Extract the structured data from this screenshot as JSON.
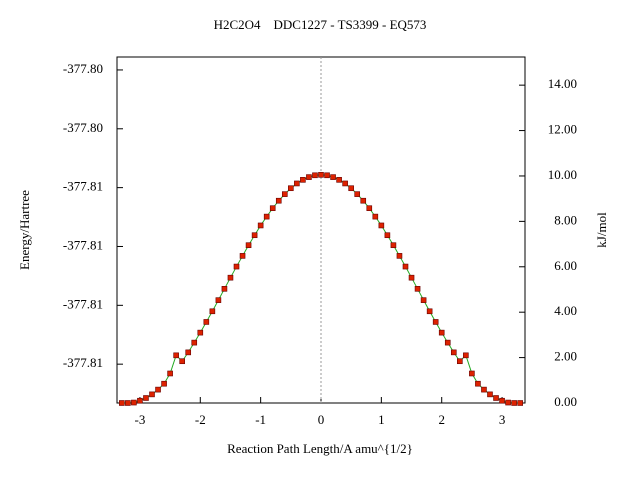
{
  "chart_data": {
    "type": "line",
    "title": "H2C2O4    DDC1227 - TS3399 - EQ573",
    "xlabel": "Reaction Path Length/A amu^{1/2}",
    "ylabel": "Energy/Hartree",
    "y2label": "kJ/mol",
    "x": [
      -3.3,
      -3.2,
      -3.1,
      -3.0,
      -2.9,
      -2.8,
      -2.7,
      -2.6,
      -2.5,
      -2.4,
      -2.3,
      -2.2,
      -2.1,
      -2.0,
      -1.9,
      -1.8,
      -1.7,
      -1.6,
      -1.5,
      -1.4,
      -1.3,
      -1.2,
      -1.1,
      -1.0,
      -0.9,
      -0.8,
      -0.7,
      -0.6,
      -0.5,
      -0.4,
      -0.3,
      -0.2,
      -0.1,
      0.0,
      0.1,
      0.2,
      0.3,
      0.4,
      0.5,
      0.6,
      0.7,
      0.8,
      0.9,
      1.0,
      1.1,
      1.2,
      1.3,
      1.4,
      1.5,
      1.6,
      1.7,
      1.8,
      1.9,
      2.0,
      2.1,
      2.2,
      2.3,
      2.4,
      2.5,
      2.6,
      2.7,
      2.8,
      2.9,
      3.0,
      3.1,
      3.2,
      3.3
    ],
    "series": [
      {
        "color": "#22aa22",
        "marker_color": "#dd2200",
        "axis": "y2",
        "values": [
          0.0,
          0.0,
          0.02,
          0.1,
          0.22,
          0.38,
          0.59,
          0.85,
          1.3,
          2.1,
          1.84,
          2.23,
          2.66,
          3.1,
          3.57,
          4.04,
          4.53,
          5.03,
          5.52,
          6.01,
          6.48,
          6.95,
          7.39,
          7.82,
          8.21,
          8.58,
          8.91,
          9.2,
          9.46,
          9.67,
          9.83,
          9.95,
          10.03,
          10.05,
          10.03,
          9.95,
          9.83,
          9.67,
          9.46,
          9.2,
          8.91,
          8.58,
          8.21,
          7.82,
          7.39,
          6.95,
          6.48,
          6.01,
          5.52,
          5.03,
          4.53,
          4.04,
          3.57,
          3.1,
          2.66,
          2.23,
          1.84,
          2.1,
          1.3,
          0.85,
          0.59,
          0.38,
          0.22,
          0.1,
          0.02,
          0.0,
          0.0
        ]
      }
    ],
    "xlim": [
      -3.38,
      3.38
    ],
    "xticks": [
      -3,
      -2,
      -1,
      0,
      1,
      2,
      3
    ],
    "ylim": [
      -377.80916,
      -377.80328
    ],
    "yticks": [
      {
        "value": -377.8085,
        "label": "-377.81"
      },
      {
        "value": -377.8075,
        "label": "-377.81"
      },
      {
        "value": -377.8065,
        "label": "-377.81"
      },
      {
        "value": -377.8055,
        "label": "-377.81"
      },
      {
        "value": -377.8045,
        "label": "-377.80"
      },
      {
        "value": -377.8035,
        "label": "-377.80"
      }
    ],
    "y2lim": [
      0,
      15.24
    ],
    "y2ticks": [
      {
        "value": 0,
        "label": "0.00"
      },
      {
        "value": 2,
        "label": "2.00"
      },
      {
        "value": 4,
        "label": "4.00"
      },
      {
        "value": 6,
        "label": "6.00"
      },
      {
        "value": 8,
        "label": "8.00"
      },
      {
        "value": 10,
        "label": "10.00"
      },
      {
        "value": 12,
        "label": "12.00"
      },
      {
        "value": 14,
        "label": "14.00"
      }
    ]
  }
}
